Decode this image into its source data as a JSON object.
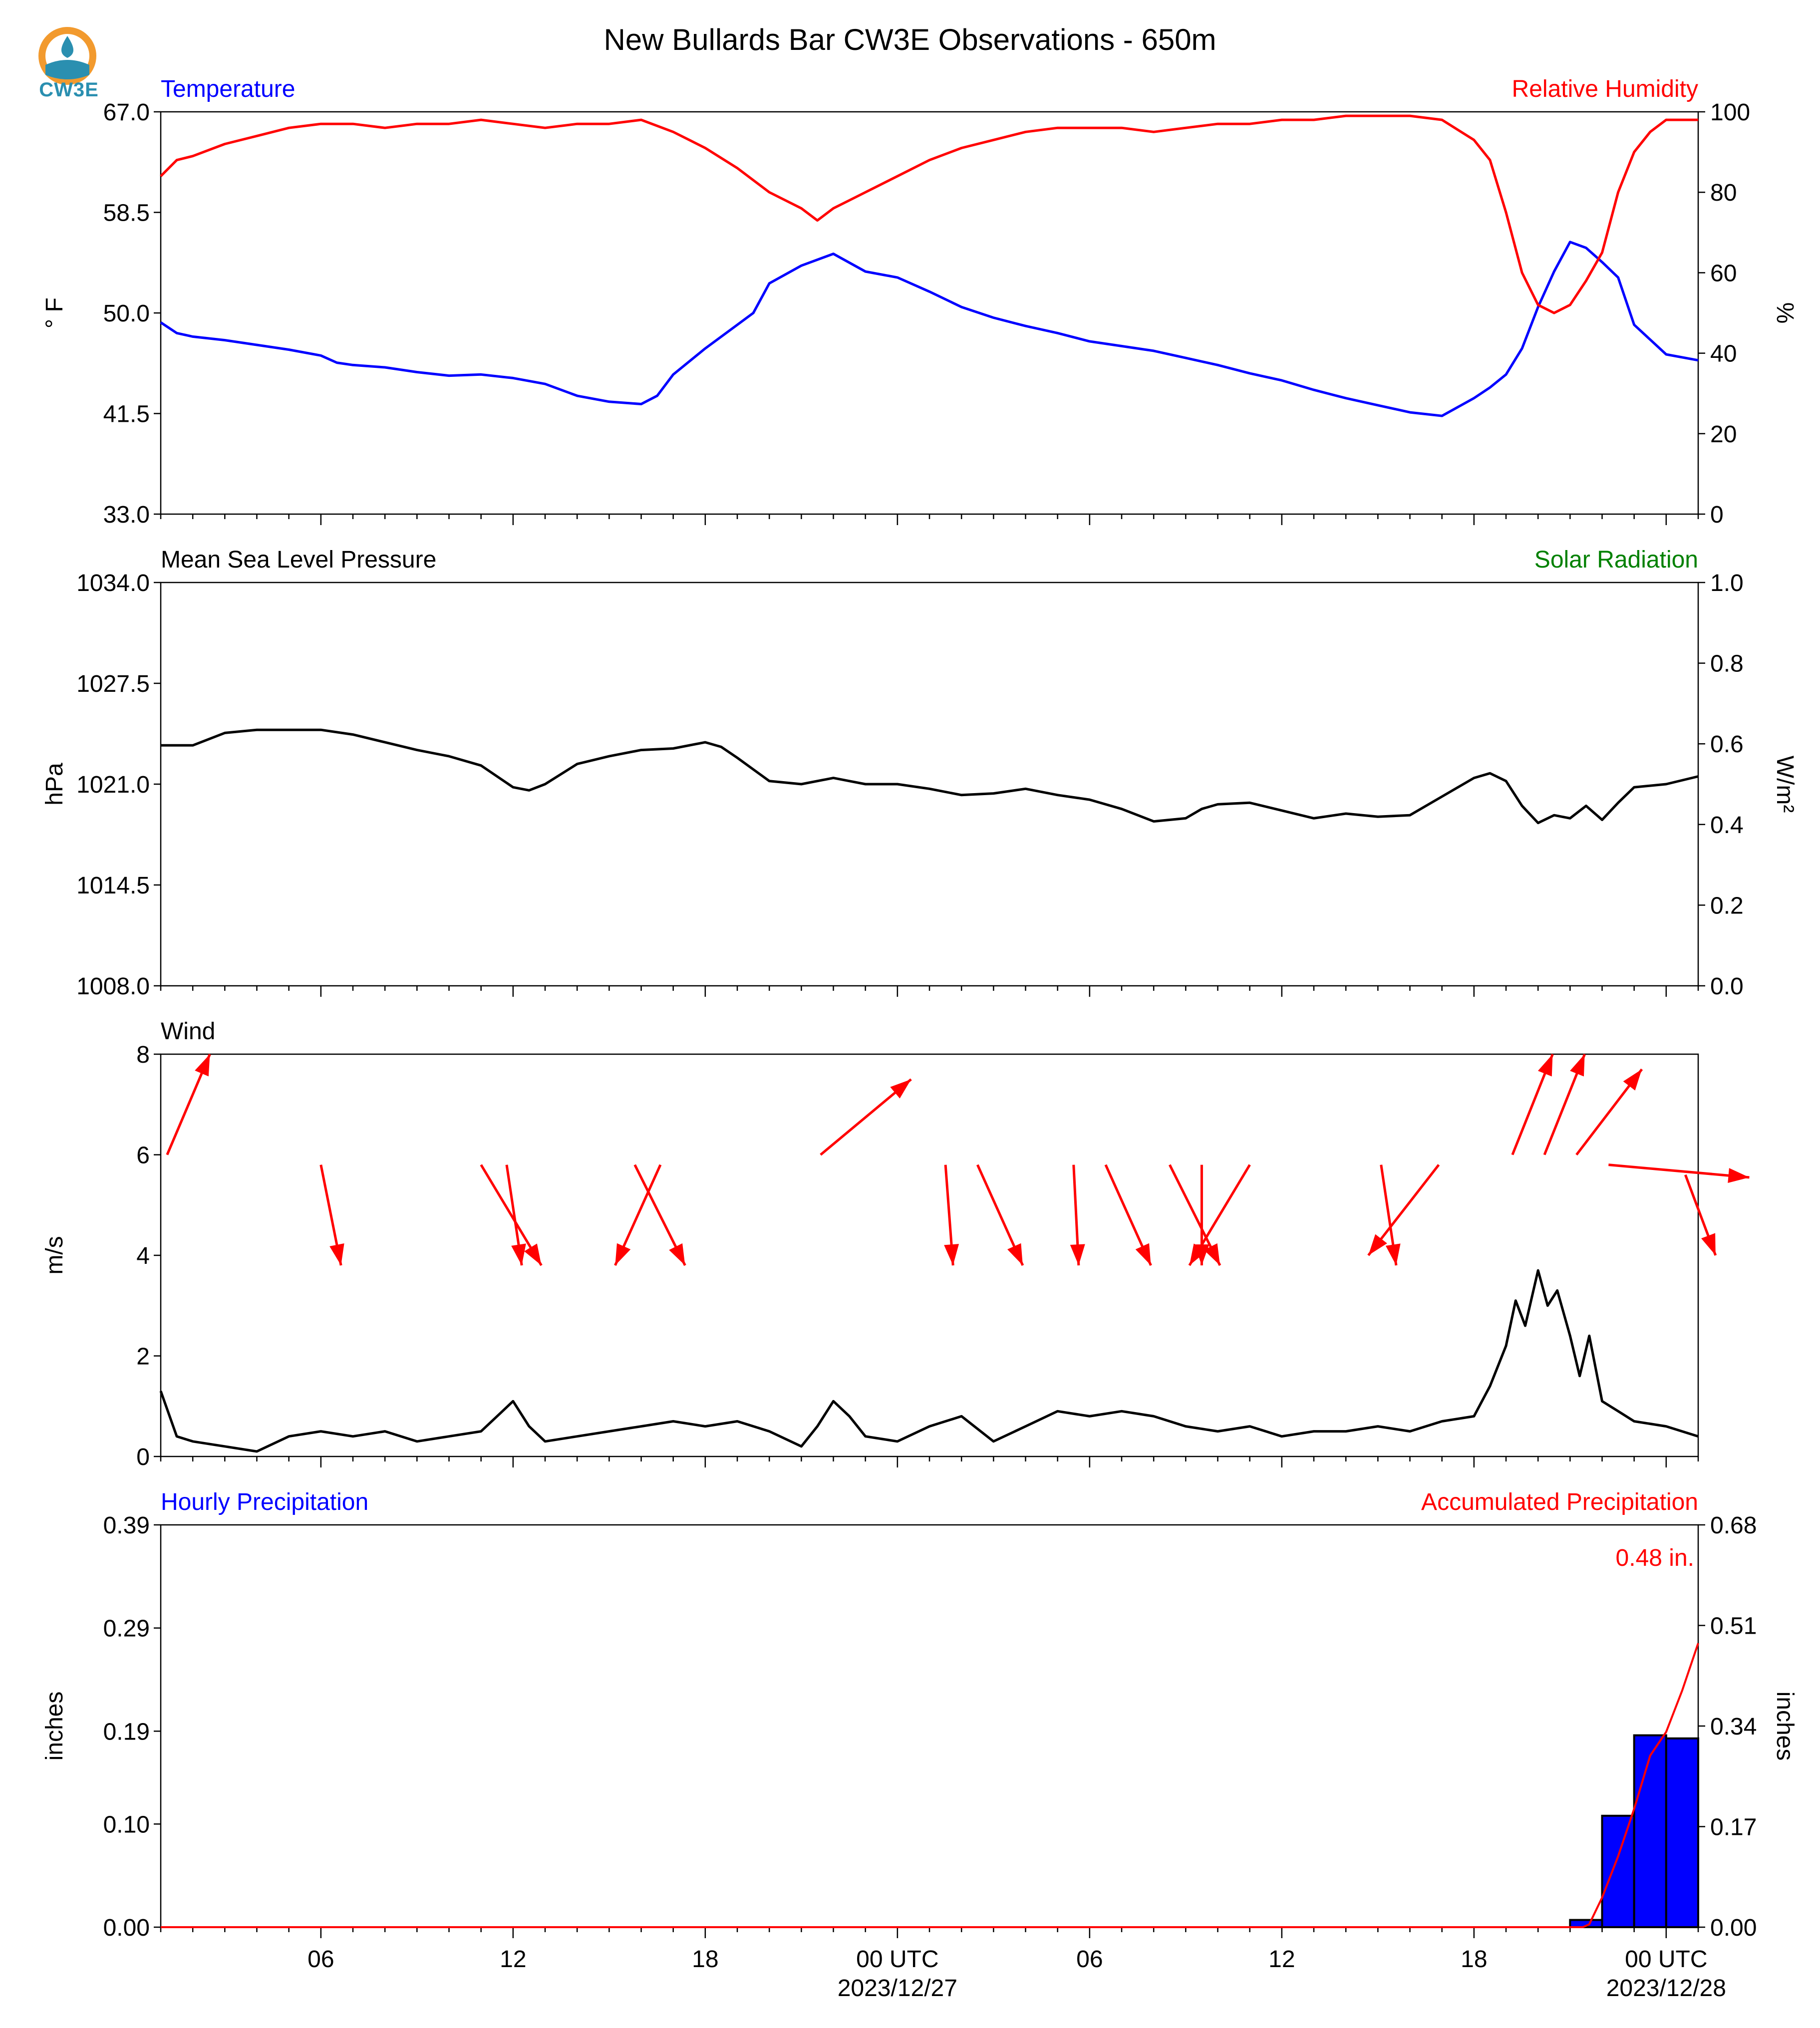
{
  "title": "New Bullards Bar CW3E Observations - 650m",
  "logo_text": "CW3E",
  "time_axis": {
    "start_hour": 1.0,
    "end_hour": 49.0,
    "ticks": [
      {
        "hour": 6,
        "label": "06",
        "sub": ""
      },
      {
        "hour": 12,
        "label": "12",
        "sub": ""
      },
      {
        "hour": 18,
        "label": "18",
        "sub": ""
      },
      {
        "hour": 24,
        "label": "00 UTC",
        "sub": "2023/12/27"
      },
      {
        "hour": 30,
        "label": "06",
        "sub": ""
      },
      {
        "hour": 36,
        "label": "12",
        "sub": ""
      },
      {
        "hour": 42,
        "label": "18",
        "sub": ""
      },
      {
        "hour": 48,
        "label": "00 UTC",
        "sub": "2023/12/28"
      }
    ]
  },
  "colors": {
    "temperature": "#0000ff",
    "humidity": "#ff0000",
    "pressure": "#000000",
    "solar": "#008000",
    "wind": "#000000",
    "wind_arrow": "#ff0000",
    "precip_bar": "#0000ff",
    "precip_accum": "#ff0000"
  },
  "chart_data": [
    {
      "type": "line",
      "panel": "temperature-humidity",
      "left_title": "Temperature",
      "right_title": "Relative Humidity",
      "ylabel_left": "° F",
      "ylabel_right": "%",
      "ylim_left": [
        33.0,
        67.0
      ],
      "ylim_right": [
        0,
        100
      ],
      "yticks_left": [
        "67.0",
        "58.5",
        "50.0",
        "41.5",
        "33.0"
      ],
      "yticks_right": [
        "100",
        "80",
        "60",
        "40",
        "20",
        "0"
      ],
      "series": [
        {
          "axis": "left",
          "x": [
            1,
            1.5,
            2,
            3,
            4,
            5,
            6,
            6.5,
            7,
            8,
            9,
            10,
            11,
            12,
            13,
            14,
            15,
            16,
            16.5,
            17,
            18,
            19,
            19.5,
            20,
            21,
            22,
            23,
            24,
            25,
            26,
            27,
            28,
            29,
            30,
            31,
            32,
            33,
            34,
            35,
            36,
            37,
            38,
            39,
            40,
            41,
            42,
            42.5,
            43,
            43.5,
            44,
            44.5,
            45,
            45.5,
            46,
            46.5,
            47,
            48,
            49
          ],
          "values": [
            49.2,
            48.3,
            48.0,
            47.7,
            47.3,
            46.9,
            46.4,
            45.8,
            45.6,
            45.4,
            45.0,
            44.7,
            44.8,
            44.5,
            44.0,
            43.0,
            42.5,
            42.3,
            43.0,
            44.8,
            47.0,
            49.0,
            50.0,
            52.5,
            54.0,
            55.0,
            53.5,
            53.0,
            51.8,
            50.5,
            49.6,
            48.9,
            48.3,
            47.6,
            47.2,
            46.8,
            46.2,
            45.6,
            44.9,
            44.3,
            43.5,
            42.8,
            42.2,
            41.6,
            41.3,
            42.8,
            43.7,
            44.8,
            47.0,
            50.5,
            53.5,
            56.0,
            55.5,
            54.3,
            53.0,
            49.0,
            46.5,
            46.0
          ]
        },
        {
          "axis": "right",
          "x": [
            1,
            1.5,
            2,
            3,
            4,
            5,
            6,
            7,
            8,
            9,
            10,
            11,
            12,
            13,
            14,
            15,
            16,
            17,
            17.5,
            18,
            19,
            20,
            20.5,
            21,
            21.5,
            22,
            22.5,
            23,
            24,
            25,
            26,
            27,
            28,
            29,
            30,
            31,
            32,
            33,
            34,
            35,
            36,
            37,
            38,
            39,
            40,
            41,
            42,
            42.5,
            43,
            43.5,
            44,
            44.5,
            45,
            45.5,
            46,
            46.5,
            47,
            47.5,
            48,
            49
          ],
          "values": [
            84,
            88,
            89,
            92,
            94,
            96,
            97,
            97,
            96,
            97,
            97,
            98,
            97,
            96,
            97,
            97,
            98,
            95,
            93,
            91,
            86,
            80,
            78,
            76,
            73,
            76,
            78,
            80,
            84,
            88,
            91,
            93,
            95,
            96,
            96,
            96,
            95,
            96,
            97,
            97,
            98,
            98,
            99,
            99,
            99,
            98,
            93,
            88,
            75,
            60,
            52,
            50,
            52,
            58,
            65,
            80,
            90,
            95,
            98,
            98
          ]
        }
      ]
    },
    {
      "type": "line",
      "panel": "pressure-solar",
      "left_title": "Mean Sea Level Pressure",
      "right_title": "Solar Radiation",
      "ylabel_left": "hPa",
      "ylabel_right": "W/m²",
      "ylim_left": [
        1008.0,
        1034.0
      ],
      "ylim_right": [
        0.0,
        1.0
      ],
      "yticks_left": [
        "1034.0",
        "1027.5",
        "1021.0",
        "1014.5",
        "1008.0"
      ],
      "yticks_right": [
        "1.0",
        "0.8",
        "0.6",
        "0.4",
        "0.2",
        "0.0"
      ],
      "series": [
        {
          "axis": "left",
          "x": [
            1,
            2,
            3,
            4,
            5,
            6,
            7,
            8,
            9,
            10,
            11,
            12,
            12.5,
            13,
            14,
            15,
            16,
            17,
            18,
            18.5,
            19,
            20,
            21,
            22,
            22.5,
            23,
            24,
            25,
            26,
            27,
            28,
            29,
            30,
            31,
            32,
            33,
            33.5,
            34,
            35,
            36,
            37,
            38,
            39,
            40,
            41,
            42,
            42.5,
            43,
            43.5,
            44,
            44.5,
            45,
            45.5,
            46,
            46.5,
            47,
            48,
            49
          ],
          "values": [
            1023.5,
            1023.5,
            1024.3,
            1024.5,
            1024.5,
            1024.5,
            1024.2,
            1023.7,
            1023.2,
            1022.8,
            1022.2,
            1020.8,
            1020.6,
            1021.0,
            1022.3,
            1022.8,
            1023.2,
            1023.3,
            1023.7,
            1023.4,
            1022.7,
            1021.2,
            1021.0,
            1021.4,
            1021.2,
            1021.0,
            1021.0,
            1020.7,
            1020.3,
            1020.4,
            1020.7,
            1020.3,
            1020.0,
            1019.4,
            1018.6,
            1018.8,
            1019.4,
            1019.7,
            1019.8,
            1019.3,
            1018.8,
            1019.1,
            1018.9,
            1019.0,
            1020.2,
            1021.4,
            1021.7,
            1021.2,
            1019.6,
            1018.5,
            1019.0,
            1018.8,
            1019.6,
            1018.7,
            1019.8,
            1020.8,
            1021.0,
            1021.5
          ]
        }
      ]
    },
    {
      "type": "line",
      "panel": "wind",
      "left_title": "Wind",
      "ylabel_left": "m/s",
      "ylim_left": [
        0,
        8
      ],
      "yticks_left": [
        "8",
        "6",
        "4",
        "2",
        "0"
      ],
      "series": [
        {
          "axis": "left",
          "x": [
            1,
            1.5,
            2,
            3,
            4,
            5,
            6,
            7,
            8,
            9,
            10,
            11,
            11.5,
            12,
            12.5,
            13,
            14,
            15,
            16,
            17,
            18,
            19,
            20,
            21,
            21.5,
            22,
            22.5,
            23,
            24,
            25,
            26,
            27,
            28,
            29,
            30,
            31,
            32,
            33,
            34,
            35,
            36,
            37,
            38,
            39,
            40,
            41,
            42,
            42.5,
            43,
            43.3,
            43.6,
            44,
            44.3,
            44.6,
            45,
            45.3,
            45.6,
            46,
            46.5,
            47,
            48,
            49
          ],
          "values": [
            1.3,
            0.4,
            0.3,
            0.2,
            0.1,
            0.4,
            0.5,
            0.4,
            0.5,
            0.3,
            0.4,
            0.5,
            0.8,
            1.1,
            0.6,
            0.3,
            0.4,
            0.5,
            0.6,
            0.7,
            0.6,
            0.7,
            0.5,
            0.2,
            0.6,
            1.1,
            0.8,
            0.4,
            0.3,
            0.6,
            0.8,
            0.3,
            0.6,
            0.9,
            0.8,
            0.9,
            0.8,
            0.6,
            0.5,
            0.6,
            0.4,
            0.5,
            0.5,
            0.6,
            0.5,
            0.7,
            0.8,
            1.4,
            2.2,
            3.1,
            2.6,
            3.7,
            3.0,
            3.3,
            2.4,
            1.6,
            2.4,
            1.1,
            0.9,
            0.7,
            0.6,
            0.4
          ]
        }
      ],
      "arrows": [
        {
          "x": 1.2,
          "speed": 6.0,
          "dx": 0.85,
          "dy": 2.0
        },
        {
          "x": 6.0,
          "speed": 5.8,
          "dx": 0.4,
          "dy": -2.0
        },
        {
          "x": 11.0,
          "speed": 5.8,
          "dx": 1.2,
          "dy": -2.0
        },
        {
          "x": 11.8,
          "speed": 5.8,
          "dx": 0.3,
          "dy": -2.0
        },
        {
          "x": 15.8,
          "speed": 5.8,
          "dx": 1.0,
          "dy": -2.0
        },
        {
          "x": 16.6,
          "speed": 5.8,
          "dx": -0.9,
          "dy": -2.0
        },
        {
          "x": 21.6,
          "speed": 6.0,
          "dx": 1.8,
          "dy": 1.5
        },
        {
          "x": 25.5,
          "speed": 5.8,
          "dx": 0.15,
          "dy": -2.0
        },
        {
          "x": 26.5,
          "speed": 5.8,
          "dx": 0.9,
          "dy": -2.0
        },
        {
          "x": 29.5,
          "speed": 5.8,
          "dx": 0.1,
          "dy": -2.0
        },
        {
          "x": 30.5,
          "speed": 5.8,
          "dx": 0.9,
          "dy": -2.0
        },
        {
          "x": 32.5,
          "speed": 5.8,
          "dx": 1.0,
          "dy": -2.0
        },
        {
          "x": 33.5,
          "speed": 5.8,
          "dx": 0.0,
          "dy": -2.0
        },
        {
          "x": 35.0,
          "speed": 5.8,
          "dx": -1.2,
          "dy": -2.0
        },
        {
          "x": 39.1,
          "speed": 5.8,
          "dx": 0.3,
          "dy": -2.0
        },
        {
          "x": 40.9,
          "speed": 5.8,
          "dx": -1.4,
          "dy": -1.8
        },
        {
          "x": 43.2,
          "speed": 6.0,
          "dx": 0.8,
          "dy": 2.0
        },
        {
          "x": 44.2,
          "speed": 6.0,
          "dx": 0.8,
          "dy": 2.0
        },
        {
          "x": 45.2,
          "speed": 6.0,
          "dx": 1.3,
          "dy": 1.7
        },
        {
          "x": 46.2,
          "speed": 5.8,
          "dx": 2.8,
          "dy": -0.25
        },
        {
          "x": 48.6,
          "speed": 5.6,
          "dx": 0.6,
          "dy": -1.6
        }
      ]
    },
    {
      "type": "bar",
      "panel": "precipitation",
      "left_title": "Hourly Precipitation",
      "right_title": "Accumulated Precipitation",
      "ylabel_left": "inches",
      "ylabel_right": "inches",
      "ylim_left": [
        0.0,
        0.39
      ],
      "ylim_right": [
        0.0,
        0.68
      ],
      "yticks_left": [
        "0.39",
        "0.29",
        "0.19",
        "0.10",
        "0.00"
      ],
      "yticks_right": [
        "0.68",
        "0.51",
        "0.34",
        "0.17",
        "0.00"
      ],
      "bars": {
        "x": [
          45.5,
          46.5,
          47.5,
          48.5
        ],
        "values": [
          0.007,
          0.108,
          0.186,
          0.183
        ]
      },
      "accumulation": {
        "x": [
          1,
          45.4,
          45.6,
          46.0,
          46.5,
          47.0,
          47.5,
          48.0,
          48.5,
          49.0
        ],
        "values": [
          0.0,
          0.0,
          0.005,
          0.05,
          0.12,
          0.2,
          0.29,
          0.33,
          0.4,
          0.48
        ]
      },
      "annotation": "0.48 in."
    }
  ]
}
